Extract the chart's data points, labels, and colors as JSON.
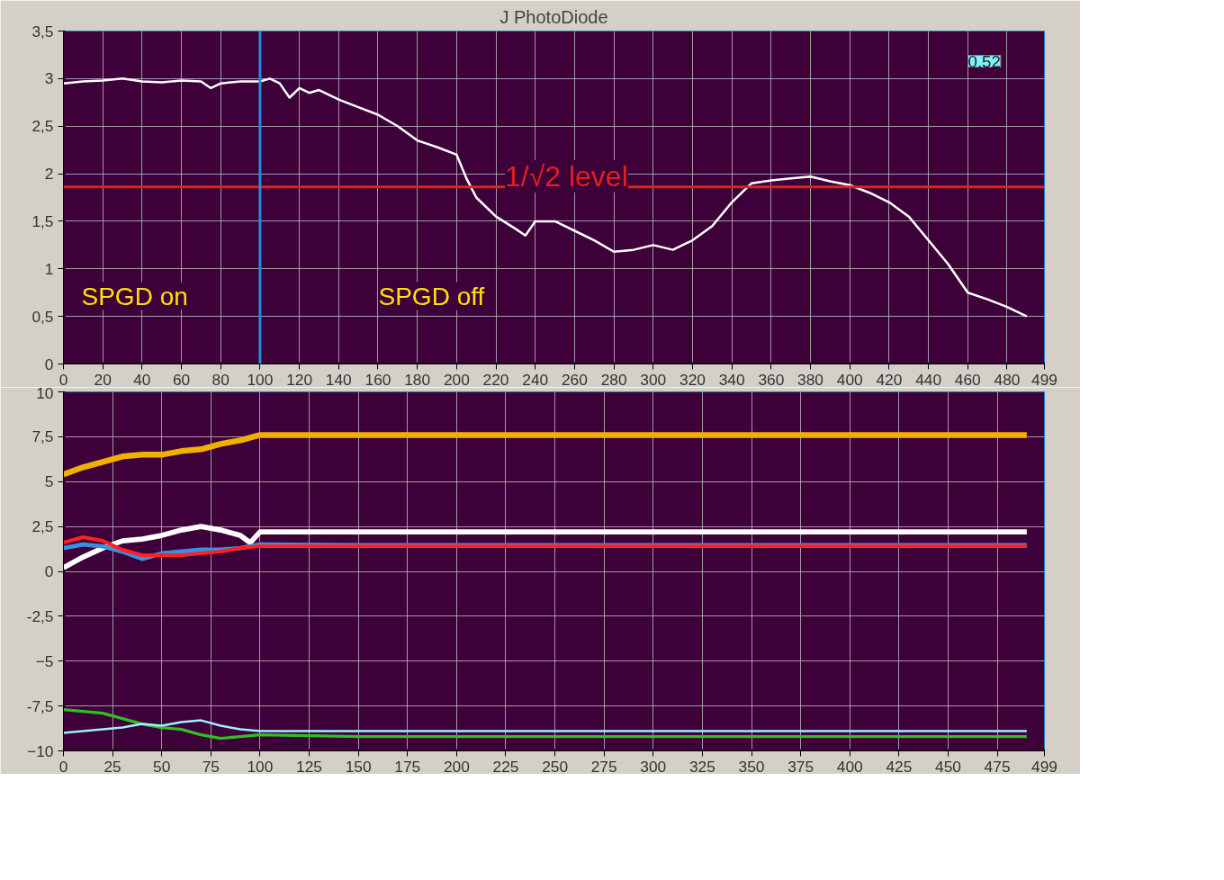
{
  "chart_data": [
    {
      "type": "line",
      "title": "J PhotoDiode",
      "xlim": [
        0,
        499
      ],
      "ylim": [
        0,
        3.5
      ],
      "xticks": [
        0,
        20,
        40,
        60,
        80,
        100,
        120,
        140,
        160,
        180,
        200,
        220,
        240,
        260,
        280,
        300,
        320,
        340,
        360,
        380,
        400,
        420,
        440,
        460,
        480,
        499
      ],
      "yticks": [
        0,
        {
          "value": 0.5,
          "label": "0,5"
        },
        1,
        {
          "value": 1.5,
          "label": "1,5"
        },
        2,
        {
          "value": 2.5,
          "label": "2,5"
        },
        3,
        {
          "value": 3.5,
          "label": "3,5"
        }
      ],
      "grid": true,
      "series": [
        {
          "color": "#ffffff",
          "x": [
            0,
            10,
            20,
            30,
            40,
            50,
            60,
            70,
            75,
            80,
            90,
            100,
            105,
            110,
            115,
            120,
            125,
            130,
            140,
            150,
            160,
            170,
            180,
            190,
            200,
            205,
            210,
            220,
            230,
            235,
            240,
            250,
            260,
            270,
            280,
            290,
            300,
            310,
            320,
            330,
            340,
            350,
            360,
            370,
            380,
            390,
            400,
            410,
            420,
            430,
            440,
            450,
            460,
            470,
            480,
            490
          ],
          "values": [
            2.95,
            2.97,
            2.98,
            3.0,
            2.97,
            2.96,
            2.98,
            2.97,
            2.9,
            2.95,
            2.97,
            2.97,
            3.0,
            2.95,
            2.8,
            2.9,
            2.85,
            2.88,
            2.78,
            2.7,
            2.62,
            2.5,
            2.35,
            2.28,
            2.2,
            1.95,
            1.75,
            1.55,
            1.42,
            1.35,
            1.5,
            1.5,
            1.4,
            1.3,
            1.18,
            1.2,
            1.25,
            1.2,
            1.3,
            1.45,
            1.7,
            1.9,
            1.93,
            1.95,
            1.97,
            1.92,
            1.88,
            1.8,
            1.7,
            1.55,
            1.3,
            1.05,
            0.75,
            0.68,
            0.6,
            0.5
          ]
        }
      ],
      "ref_lines": [
        {
          "axis": "y",
          "value": 1.86,
          "label": "1/√2 level",
          "color": "#e02020"
        },
        {
          "axis": "x",
          "value": 100,
          "color": "#1f8fe0"
        }
      ],
      "annotations": [
        "SPGD on",
        "SPGD off",
        "0,52"
      ]
    },
    {
      "type": "line",
      "xlim": [
        0,
        499
      ],
      "ylim": [
        -10,
        10
      ],
      "xticks": [
        0,
        25,
        50,
        75,
        100,
        125,
        150,
        175,
        200,
        225,
        250,
        275,
        300,
        325,
        350,
        375,
        400,
        425,
        450,
        475,
        499
      ],
      "yticks": [
        -10,
        {
          "value": -7.5,
          "label": "-7,5"
        },
        -5,
        {
          "value": -2.5,
          "label": "-2,5"
        },
        0,
        {
          "value": 2.5,
          "label": "2,5"
        },
        5,
        {
          "value": 7.5,
          "label": "7,5"
        },
        10
      ],
      "grid": true,
      "series": [
        {
          "color": "#f0b000",
          "x": [
            0,
            10,
            20,
            30,
            40,
            50,
            60,
            70,
            80,
            90,
            100,
            150,
            490
          ],
          "values": [
            5.4,
            5.8,
            6.1,
            6.4,
            6.5,
            6.5,
            6.7,
            6.8,
            7.1,
            7.3,
            7.6,
            7.6,
            7.6
          ]
        },
        {
          "color": "#ffffff",
          "x": [
            0,
            10,
            20,
            30,
            40,
            50,
            60,
            70,
            80,
            90,
            95,
            100,
            490
          ],
          "values": [
            0.2,
            0.8,
            1.3,
            1.7,
            1.8,
            2.0,
            2.3,
            2.5,
            2.3,
            2.0,
            1.6,
            2.2,
            2.2
          ]
        },
        {
          "color": "#3a8fe0",
          "x": [
            0,
            10,
            20,
            30,
            40,
            50,
            60,
            70,
            80,
            90,
            100,
            150,
            490
          ],
          "values": [
            1.3,
            1.5,
            1.4,
            1.1,
            0.7,
            1.0,
            1.1,
            1.2,
            1.2,
            1.3,
            1.5,
            1.45,
            1.45
          ]
        },
        {
          "color": "#ff2020",
          "x": [
            0,
            10,
            20,
            30,
            40,
            50,
            60,
            70,
            80,
            90,
            100,
            490
          ],
          "values": [
            1.6,
            1.9,
            1.7,
            1.2,
            0.9,
            0.9,
            0.9,
            1.0,
            1.1,
            1.3,
            1.4,
            1.4
          ]
        },
        {
          "color": "#30c020",
          "x": [
            0,
            10,
            20,
            30,
            40,
            50,
            60,
            70,
            80,
            90,
            100,
            150,
            490
          ],
          "values": [
            -7.7,
            -7.8,
            -7.9,
            -8.2,
            -8.5,
            -8.7,
            -8.8,
            -9.1,
            -9.3,
            -9.2,
            -9.1,
            -9.2,
            -9.2
          ]
        },
        {
          "color": "#a0f0ff",
          "x": [
            0,
            10,
            20,
            30,
            40,
            50,
            60,
            70,
            80,
            90,
            100,
            490
          ],
          "values": [
            -9.0,
            -8.9,
            -8.8,
            -8.7,
            -8.5,
            -8.6,
            -8.4,
            -8.3,
            -8.6,
            -8.8,
            -8.9,
            -8.9
          ]
        }
      ]
    }
  ]
}
